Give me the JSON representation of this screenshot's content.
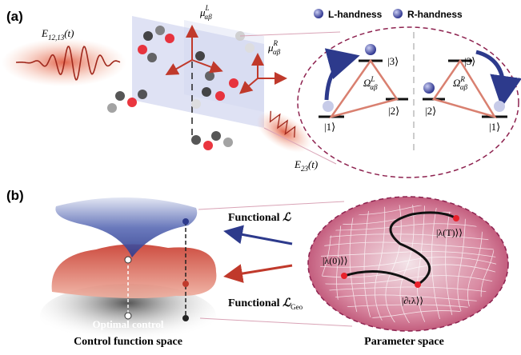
{
  "panel_a": {
    "label": "(a)",
    "legend": [
      "L-handness",
      "R-handness"
    ],
    "field_1": {
      "symbol": "E",
      "sub": "12,13",
      "arg": "(t)"
    },
    "field_2": {
      "symbol": "E",
      "sub": "23",
      "arg": "(t)"
    },
    "dipole_L": {
      "symbol": "μ",
      "sub": "αβ",
      "sup": "L"
    },
    "dipole_R": {
      "symbol": "μ",
      "sub": "αβ",
      "sup": "R"
    },
    "left_levels": {
      "states": [
        "|3⟩",
        "|2⟩",
        "|1⟩"
      ],
      "coupling": {
        "symbol": "Ω",
        "sub": "αβ",
        "sup": "L"
      }
    },
    "right_levels": {
      "states": [
        "|3⟩",
        "|2⟩",
        "|1⟩"
      ],
      "coupling": {
        "symbol": "Ω",
        "sub": "αβ",
        "sup": "R"
      }
    }
  },
  "panel_b": {
    "label": "(b)",
    "functional_1": {
      "text": "Functional",
      "symbol": "ℒ"
    },
    "functional_2": {
      "text": "Functional",
      "symbol": "ℒ",
      "sub": "Geo"
    },
    "states": [
      "|λ(T)⟩⟩",
      "|λ(0)⟩⟩",
      "|∂ₜλ⟩⟩"
    ],
    "optimal": "Optimal control",
    "left_caption": "Control function space",
    "right_caption": "Parameter space"
  }
}
